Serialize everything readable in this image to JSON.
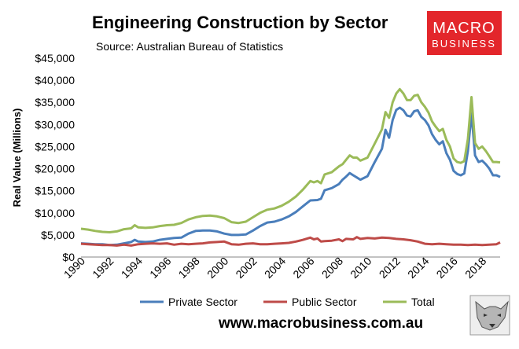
{
  "brand": {
    "logo_line1": "MACRO",
    "logo_line2": "BUSINESS",
    "logo_color": "#e3262b",
    "website": "www.macrobusiness.com.au"
  },
  "chart_data": {
    "type": "line",
    "title": "Engineering Construction by Sector",
    "subtitle": "Source: Australian Bureau of Statistics",
    "ylabel": "Real Value (Millions)",
    "xlabel": "",
    "ylim": [
      0,
      45000
    ],
    "xlim": [
      1990,
      2019.25
    ],
    "grid": false,
    "legend_position": "bottom",
    "y_ticks": [
      {
        "value": 0,
        "label": "$0"
      },
      {
        "value": 5000,
        "label": "$5,000"
      },
      {
        "value": 10000,
        "label": "$10,000"
      },
      {
        "value": 15000,
        "label": "$15,000"
      },
      {
        "value": 20000,
        "label": "$20,000"
      },
      {
        "value": 25000,
        "label": "$25,000"
      },
      {
        "value": 30000,
        "label": "$30,000"
      },
      {
        "value": 35000,
        "label": "$35,000"
      },
      {
        "value": 40000,
        "label": "$40,000"
      },
      {
        "value": 45000,
        "label": "$45,000"
      }
    ],
    "x_ticks": [
      {
        "value": 1990,
        "label": "1990"
      },
      {
        "value": 1992,
        "label": "1992"
      },
      {
        "value": 1994,
        "label": "1994"
      },
      {
        "value": 1996,
        "label": "1996"
      },
      {
        "value": 1998,
        "label": "1998"
      },
      {
        "value": 2000,
        "label": "2000"
      },
      {
        "value": 2002,
        "label": "2002"
      },
      {
        "value": 2004,
        "label": "2004"
      },
      {
        "value": 2006,
        "label": "2006"
      },
      {
        "value": 2008,
        "label": "2008"
      },
      {
        "value": 2010,
        "label": "2010"
      },
      {
        "value": 2012,
        "label": "2012"
      },
      {
        "value": 2014,
        "label": "2014"
      },
      {
        "value": 2016,
        "label": "2016"
      },
      {
        "value": 2018,
        "label": "2018"
      }
    ],
    "series": [
      {
        "name": "Private Sector",
        "color": "#4a7ebb",
        "points": [
          [
            1990,
            3100
          ],
          [
            1990.5,
            3000
          ],
          [
            1991,
            2900
          ],
          [
            1991.5,
            2900
          ],
          [
            1992,
            2700
          ],
          [
            1992.5,
            2800
          ],
          [
            1993,
            3100
          ],
          [
            1993.5,
            3400
          ],
          [
            1993.75,
            3900
          ],
          [
            1994,
            3500
          ],
          [
            1994.5,
            3400
          ],
          [
            1995,
            3500
          ],
          [
            1995.5,
            3900
          ],
          [
            1996,
            4100
          ],
          [
            1996.5,
            4300
          ],
          [
            1997,
            4400
          ],
          [
            1997.5,
            5300
          ],
          [
            1998,
            5900
          ],
          [
            1998.5,
            6000
          ],
          [
            1999,
            6000
          ],
          [
            1999.5,
            5800
          ],
          [
            2000,
            5300
          ],
          [
            2000.5,
            5000
          ],
          [
            2001,
            5000
          ],
          [
            2001.5,
            5100
          ],
          [
            2002,
            6000
          ],
          [
            2002.5,
            7000
          ],
          [
            2003,
            7800
          ],
          [
            2003.5,
            8000
          ],
          [
            2004,
            8500
          ],
          [
            2004.5,
            9200
          ],
          [
            2005,
            10200
          ],
          [
            2005.5,
            11500
          ],
          [
            2006,
            12800
          ],
          [
            2006.5,
            12900
          ],
          [
            2006.75,
            13200
          ],
          [
            2007,
            15100
          ],
          [
            2007.5,
            15600
          ],
          [
            2008,
            16500
          ],
          [
            2008.25,
            17500
          ],
          [
            2008.5,
            18200
          ],
          [
            2008.75,
            19000
          ],
          [
            2009,
            18500
          ],
          [
            2009.25,
            18000
          ],
          [
            2009.5,
            17500
          ],
          [
            2010,
            18300
          ],
          [
            2010.5,
            21500
          ],
          [
            2011,
            24500
          ],
          [
            2011.25,
            28800
          ],
          [
            2011.5,
            27000
          ],
          [
            2011.75,
            31000
          ],
          [
            2012,
            33300
          ],
          [
            2012.25,
            33800
          ],
          [
            2012.5,
            33200
          ],
          [
            2012.75,
            32000
          ],
          [
            2013,
            31800
          ],
          [
            2013.25,
            33000
          ],
          [
            2013.5,
            33200
          ],
          [
            2013.75,
            31700
          ],
          [
            2014,
            31000
          ],
          [
            2014.25,
            29800
          ],
          [
            2014.5,
            27800
          ],
          [
            2014.75,
            26500
          ],
          [
            2015,
            25500
          ],
          [
            2015.25,
            26200
          ],
          [
            2015.5,
            23500
          ],
          [
            2015.75,
            22000
          ],
          [
            2016,
            19500
          ],
          [
            2016.25,
            18800
          ],
          [
            2016.5,
            18500
          ],
          [
            2016.75,
            18900
          ],
          [
            2017,
            24000
          ],
          [
            2017.25,
            32500
          ],
          [
            2017.5,
            23000
          ],
          [
            2017.75,
            21500
          ],
          [
            2018,
            21800
          ],
          [
            2018.25,
            21000
          ],
          [
            2018.5,
            20000
          ],
          [
            2018.75,
            18500
          ],
          [
            2019,
            18500
          ],
          [
            2019.25,
            18100
          ]
        ]
      },
      {
        "name": "Public Sector",
        "color": "#be4b48",
        "points": [
          [
            1990,
            3000
          ],
          [
            1990.5,
            2900
          ],
          [
            1991,
            2800
          ],
          [
            1991.5,
            2700
          ],
          [
            1992,
            2700
          ],
          [
            1992.5,
            2600
          ],
          [
            1993,
            2800
          ],
          [
            1993.5,
            2600
          ],
          [
            1994,
            2900
          ],
          [
            1994.5,
            3000
          ],
          [
            1995,
            3100
          ],
          [
            1995.5,
            3000
          ],
          [
            1996,
            3100
          ],
          [
            1996.5,
            2800
          ],
          [
            1997,
            3000
          ],
          [
            1997.5,
            2900
          ],
          [
            1998,
            3000
          ],
          [
            1998.5,
            3100
          ],
          [
            1999,
            3300
          ],
          [
            1999.5,
            3400
          ],
          [
            2000,
            3500
          ],
          [
            2000.5,
            2900
          ],
          [
            2001,
            2800
          ],
          [
            2001.5,
            3000
          ],
          [
            2002,
            3100
          ],
          [
            2002.5,
            2900
          ],
          [
            2003,
            2900
          ],
          [
            2003.5,
            3000
          ],
          [
            2004,
            3100
          ],
          [
            2004.5,
            3200
          ],
          [
            2005,
            3500
          ],
          [
            2005.5,
            3900
          ],
          [
            2006,
            4400
          ],
          [
            2006.25,
            4000
          ],
          [
            2006.5,
            4200
          ],
          [
            2006.75,
            3500
          ],
          [
            2007,
            3600
          ],
          [
            2007.5,
            3700
          ],
          [
            2008,
            4000
          ],
          [
            2008.25,
            3600
          ],
          [
            2008.5,
            4100
          ],
          [
            2009,
            4000
          ],
          [
            2009.25,
            4500
          ],
          [
            2009.5,
            4100
          ],
          [
            2010,
            4300
          ],
          [
            2010.5,
            4200
          ],
          [
            2011,
            4400
          ],
          [
            2011.5,
            4300
          ],
          [
            2012,
            4100
          ],
          [
            2012.5,
            4000
          ],
          [
            2013,
            3800
          ],
          [
            2013.5,
            3500
          ],
          [
            2014,
            3000
          ],
          [
            2014.5,
            2900
          ],
          [
            2015,
            3000
          ],
          [
            2015.5,
            2900
          ],
          [
            2016,
            2800
          ],
          [
            2016.5,
            2800
          ],
          [
            2017,
            2700
          ],
          [
            2017.5,
            2800
          ],
          [
            2018,
            2700
          ],
          [
            2018.5,
            2800
          ],
          [
            2019,
            2900
          ],
          [
            2019.25,
            3300
          ]
        ]
      },
      {
        "name": "Total",
        "color": "#9bbb59",
        "points": [
          [
            1990,
            6400
          ],
          [
            1990.5,
            6200
          ],
          [
            1991,
            5900
          ],
          [
            1991.5,
            5700
          ],
          [
            1992,
            5600
          ],
          [
            1992.5,
            5800
          ],
          [
            1993,
            6300
          ],
          [
            1993.5,
            6500
          ],
          [
            1993.75,
            7200
          ],
          [
            1994,
            6700
          ],
          [
            1994.5,
            6600
          ],
          [
            1995,
            6700
          ],
          [
            1995.5,
            7000
          ],
          [
            1996,
            7200
          ],
          [
            1996.5,
            7300
          ],
          [
            1997,
            7700
          ],
          [
            1997.5,
            8500
          ],
          [
            1998,
            9000
          ],
          [
            1998.5,
            9300
          ],
          [
            1999,
            9400
          ],
          [
            1999.5,
            9200
          ],
          [
            2000,
            8800
          ],
          [
            2000.5,
            7900
          ],
          [
            2001,
            7700
          ],
          [
            2001.5,
            8000
          ],
          [
            2002,
            9000
          ],
          [
            2002.5,
            10000
          ],
          [
            2003,
            10700
          ],
          [
            2003.5,
            11000
          ],
          [
            2004,
            11600
          ],
          [
            2004.5,
            12500
          ],
          [
            2005,
            13700
          ],
          [
            2005.5,
            15300
          ],
          [
            2006,
            17200
          ],
          [
            2006.25,
            16900
          ],
          [
            2006.5,
            17200
          ],
          [
            2006.75,
            16700
          ],
          [
            2007,
            18700
          ],
          [
            2007.5,
            19200
          ],
          [
            2008,
            20500
          ],
          [
            2008.25,
            21000
          ],
          [
            2008.5,
            22000
          ],
          [
            2008.75,
            23000
          ],
          [
            2009,
            22500
          ],
          [
            2009.25,
            22500
          ],
          [
            2009.5,
            21800
          ],
          [
            2010,
            22500
          ],
          [
            2010.5,
            25700
          ],
          [
            2011,
            28900
          ],
          [
            2011.25,
            32800
          ],
          [
            2011.5,
            31500
          ],
          [
            2011.75,
            35000
          ],
          [
            2012,
            37000
          ],
          [
            2012.25,
            38000
          ],
          [
            2012.5,
            37000
          ],
          [
            2012.75,
            35500
          ],
          [
            2013,
            35500
          ],
          [
            2013.25,
            36500
          ],
          [
            2013.5,
            36700
          ],
          [
            2013.75,
            35000
          ],
          [
            2014,
            34000
          ],
          [
            2014.25,
            32700
          ],
          [
            2014.5,
            30700
          ],
          [
            2014.75,
            29500
          ],
          [
            2015,
            28500
          ],
          [
            2015.25,
            29000
          ],
          [
            2015.5,
            26500
          ],
          [
            2015.75,
            25000
          ],
          [
            2016,
            22300
          ],
          [
            2016.25,
            21500
          ],
          [
            2016.5,
            21300
          ],
          [
            2016.75,
            21700
          ],
          [
            2017,
            26700
          ],
          [
            2017.25,
            36200
          ],
          [
            2017.5,
            25800
          ],
          [
            2017.75,
            24500
          ],
          [
            2018,
            25000
          ],
          [
            2018.25,
            24000
          ],
          [
            2018.5,
            22800
          ],
          [
            2018.75,
            21500
          ],
          [
            2019,
            21500
          ],
          [
            2019.25,
            21400
          ]
        ]
      }
    ]
  }
}
